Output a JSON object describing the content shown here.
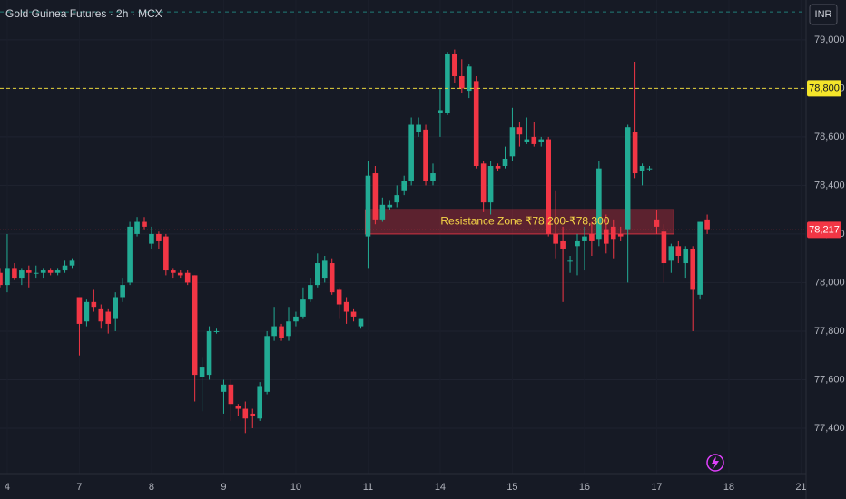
{
  "chart_data": {
    "type": "candlestick",
    "title": "Gold Guinea Futures · 2h · MCX",
    "currency": "INR",
    "up_color": "#22ab94",
    "down_color": "#f23645",
    "grid": true,
    "ylim": [
      77213,
      79164
    ],
    "yticks": [
      {
        "value": 79000,
        "label": "79,000"
      },
      {
        "value": 78800,
        "label": "78,800"
      },
      {
        "value": 78600,
        "label": "78,600"
      },
      {
        "value": 78400,
        "label": "78,400"
      },
      {
        "value": 78200,
        "label": "78,200"
      },
      {
        "value": 78000,
        "label": "78,000"
      },
      {
        "value": 77800,
        "label": "77,800"
      },
      {
        "value": 77600,
        "label": "77,600"
      },
      {
        "value": 77400,
        "label": "77,400"
      }
    ],
    "price_lines": [
      {
        "value": 79115,
        "color": "#26a69a"
      },
      {
        "value": 78800,
        "label": "78,800",
        "color": "#e6d23a"
      },
      {
        "value": 78217,
        "label": "78,217",
        "color": "#f23645"
      }
    ],
    "zone": {
      "label": "Resistance Zone ₹78,200-₹78,300",
      "from": 78200,
      "to": 78300,
      "start_index": 51,
      "end_index": 93
    },
    "categories": [
      null,
      "4",
      null,
      null,
      null,
      null,
      null,
      null,
      null,
      null,
      null,
      "7",
      null,
      null,
      null,
      null,
      null,
      null,
      null,
      null,
      null,
      "8",
      null,
      null,
      null,
      null,
      null,
      null,
      null,
      null,
      null,
      "9",
      null,
      null,
      null,
      null,
      null,
      null,
      null,
      null,
      null,
      "10",
      null,
      null,
      null,
      null,
      null,
      null,
      null,
      null,
      null,
      "11",
      null,
      null,
      null,
      null,
      null,
      null,
      null,
      null,
      null,
      "14",
      null,
      null,
      null,
      null,
      null,
      null,
      null,
      null,
      null,
      "15",
      null,
      null,
      null,
      null,
      null,
      null,
      null,
      null,
      null,
      "16",
      null,
      null,
      null,
      null,
      null,
      null,
      null,
      null,
      null,
      "17",
      null,
      null,
      null,
      null,
      null,
      null,
      null,
      null,
      null,
      "18",
      null,
      null,
      null,
      null,
      null,
      null,
      null,
      null,
      null,
      "21"
    ],
    "open": [
      78040,
      77990,
      78060,
      78020,
      78050,
      78040,
      78040,
      78050,
      78040,
      78050,
      78070,
      77940,
      77840,
      77920,
      77890,
      77880,
      77850,
      77940,
      78000,
      78200,
      78250,
      78160,
      78200,
      78190,
      78050,
      78040,
      78040,
      78030,
      77610,
      77620,
      77800,
      77550,
      77580,
      77490,
      77480,
      77460,
      77440,
      77550,
      77780,
      77820,
      77780,
      77840,
      77860,
      77930,
      77990,
      78020,
      78080,
      77970,
      77920,
      77880,
      77820,
      78190,
      78450,
      78260,
      78310,
      78330,
      78380,
      78420,
      78620,
      78630,
      78420,
      78700,
      78700,
      78940,
      78850,
      78790,
      78830,
      78490,
      78330,
      78480,
      78480,
      78520,
      78640,
      78580,
      78600,
      78580,
      78590,
      78200,
      78170,
      78090,
      78150,
      78170,
      78200,
      78180,
      78220,
      78230,
      78200,
      78220,
      78620,
      78460,
      78470,
      78260,
      78210,
      78090,
      78150,
      78080,
      78140,
      77950,
      78260,
      null,
      null,
      null,
      null,
      null,
      null,
      null,
      null,
      null,
      null,
      null,
      null,
      null
    ],
    "high": [
      78060,
      78200,
      78080,
      78060,
      78070,
      78070,
      78060,
      78060,
      78060,
      78090,
      78100,
      77940,
      77930,
      77970,
      77910,
      77890,
      77960,
      78020,
      78250,
      78270,
      78270,
      78230,
      78210,
      78200,
      78060,
      78050,
      78050,
      78030,
      77690,
      77820,
      77810,
      77600,
      77600,
      77500,
      77510,
      77480,
      77590,
      77800,
      77900,
      77830,
      77900,
      77880,
      77980,
      78020,
      78120,
      78110,
      78100,
      77980,
      77940,
      77890,
      77850,
      78500,
      78480,
      78350,
      78340,
      78400,
      78440,
      78680,
      78680,
      78650,
      78490,
      78800,
      78950,
      78960,
      78920,
      78900,
      78850,
      78500,
      78500,
      78490,
      78560,
      78720,
      78660,
      78680,
      78660,
      78600,
      78600,
      78380,
      78230,
      78110,
      78200,
      78230,
      78250,
      78500,
      78280,
      78260,
      78230,
      78650,
      78910,
      78490,
      78480,
      78300,
      78240,
      78160,
      78170,
      78150,
      78150,
      78250,
      78280,
      null,
      null,
      null,
      null,
      null,
      null,
      null,
      null,
      null,
      null,
      null,
      null,
      null
    ],
    "low": [
      77980,
      77960,
      78010,
      77990,
      77980,
      78020,
      78020,
      78030,
      78030,
      78040,
      78060,
      77700,
      77820,
      77880,
      77810,
      77790,
      77800,
      77920,
      77990,
      78190,
      78220,
      78140,
      78140,
      78030,
      78020,
      78020,
      77990,
      77510,
      77470,
      77600,
      77790,
      77460,
      77430,
      77450,
      77380,
      77400,
      77430,
      77540,
      77760,
      77760,
      77760,
      77820,
      77850,
      77920,
      77980,
      78000,
      77950,
      77850,
      77830,
      77840,
      77810,
      78060,
      78240,
      78250,
      78300,
      78310,
      78360,
      78400,
      78600,
      78400,
      78400,
      78600,
      78690,
      78820,
      78780,
      78760,
      78470,
      78290,
      78280,
      78460,
      78470,
      78500,
      78560,
      78570,
      78560,
      78560,
      78190,
      78100,
      77920,
      78040,
      78030,
      78050,
      78110,
      78150,
      78120,
      78100,
      78170,
      78000,
      78430,
      78400,
      78460,
      78200,
      78000,
      78040,
      78080,
      78020,
      77800,
      77930,
      78200,
      null,
      null,
      null,
      null,
      null,
      null,
      null,
      null,
      null,
      null,
      null,
      null,
      null
    ],
    "close": [
      77990,
      78060,
      78020,
      78050,
      78040,
      78040,
      78050,
      78040,
      78050,
      78070,
      78090,
      77830,
      77920,
      77900,
      77840,
      77830,
      77940,
      77990,
      78230,
      78250,
      78230,
      78200,
      78170,
      78050,
      78040,
      78030,
      78000,
      77620,
      77650,
      77800,
      77800,
      77580,
      77500,
      77480,
      77440,
      77450,
      77570,
      77780,
      77820,
      77770,
      77840,
      77860,
      77930,
      77990,
      78080,
      78090,
      77960,
      77910,
      77880,
      77860,
      77850,
      78440,
      78260,
      78320,
      78320,
      78360,
      78420,
      78650,
      78650,
      78420,
      78450,
      78710,
      78940,
      78850,
      78800,
      78890,
      78480,
      78330,
      78480,
      78470,
      78510,
      78640,
      78610,
      78590,
      78570,
      78590,
      78200,
      78160,
      78140,
      78090,
      78170,
      78190,
      78170,
      78470,
      78160,
      78180,
      78190,
      78640,
      78450,
      78480,
      78470,
      78230,
      78080,
      78150,
      78110,
      78140,
      77970,
      78250,
      78220,
      null,
      null,
      null,
      null,
      null,
      null,
      null,
      null,
      null,
      null,
      null,
      null,
      null
    ]
  }
}
